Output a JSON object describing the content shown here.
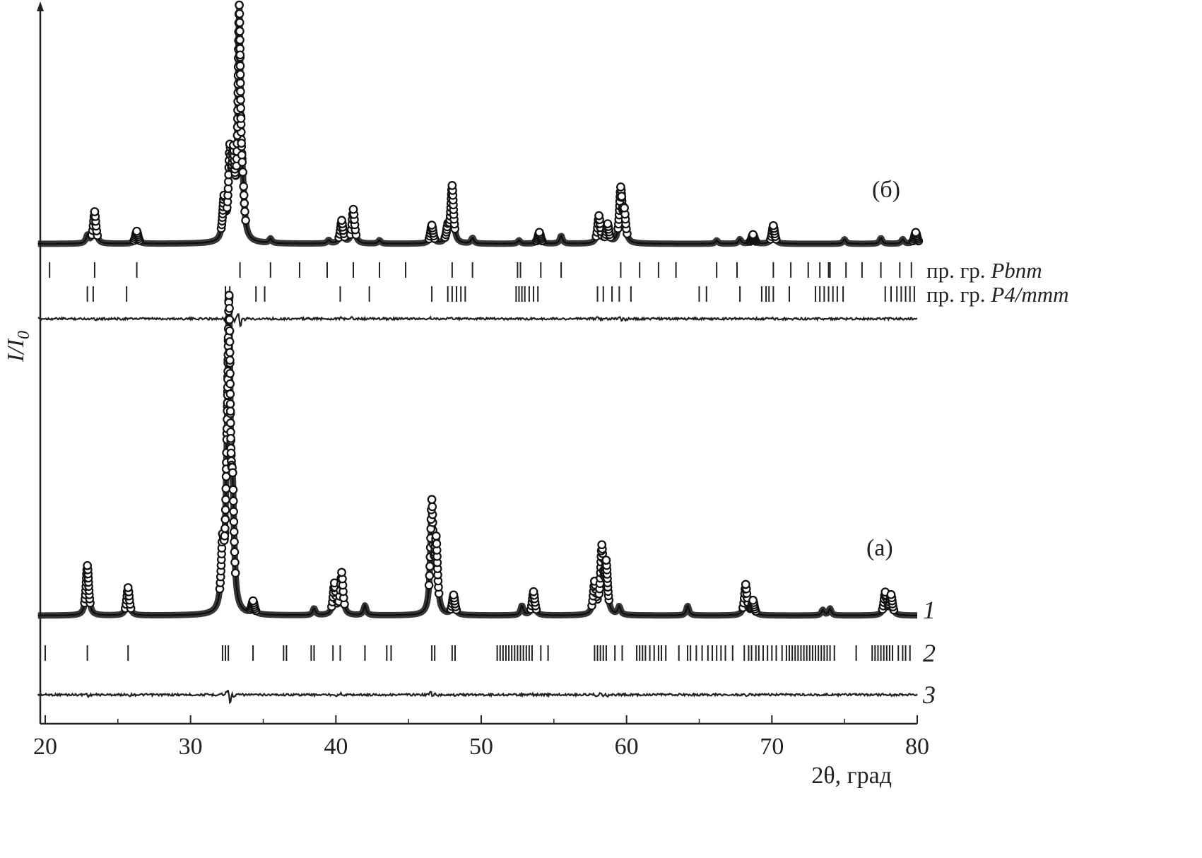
{
  "chart_data": {
    "type": "line",
    "xlabel": "2θ, град",
    "ylabel": "I/I",
    "ylabel_subscript": "0",
    "xlim": [
      19.5,
      80
    ],
    "xticks": [
      20,
      30,
      40,
      50,
      60,
      70,
      80
    ],
    "grid": false,
    "legend": "none",
    "panels": [
      {
        "label": "(а)",
        "baseline": 0,
        "peaks": [
          [
            22.9,
            180
          ],
          [
            25.7,
            100
          ],
          [
            32.2,
            200
          ],
          [
            32.5,
            260
          ],
          [
            32.65,
            1000
          ],
          [
            32.9,
            330
          ],
          [
            34.3,
            45
          ],
          [
            38.5,
            25
          ],
          [
            39.9,
            110
          ],
          [
            40.4,
            150
          ],
          [
            42.0,
            35
          ],
          [
            46.6,
            390
          ],
          [
            46.9,
            240
          ],
          [
            48.1,
            70
          ],
          [
            52.8,
            35
          ],
          [
            53.6,
            85
          ],
          [
            57.8,
            110
          ],
          [
            58.3,
            230
          ],
          [
            58.6,
            170
          ],
          [
            59.5,
            30
          ],
          [
            64.2,
            35
          ],
          [
            68.2,
            110
          ],
          [
            68.7,
            50
          ],
          [
            73.5,
            20
          ],
          [
            74.0,
            25
          ],
          [
            77.8,
            80
          ],
          [
            78.2,
            70
          ]
        ],
        "curve_labels": [
          "1",
          "2",
          "3"
        ],
        "reflections": [
          {
            "name": "",
            "positions": [
              20.0,
              22.9,
              25.7,
              32.2,
              32.4,
              32.6,
              34.3,
              36.4,
              36.6,
              38.3,
              38.5,
              39.8,
              40.3,
              42.0,
              43.5,
              43.8,
              46.6,
              46.8,
              48.0,
              48.2,
              51.1,
              51.3,
              51.5,
              51.7,
              51.9,
              52.1,
              52.3,
              52.5,
              52.7,
              52.9,
              53.1,
              53.3,
              53.5,
              54.1,
              54.6,
              57.8,
              58.0,
              58.2,
              58.4,
              58.6,
              59.2,
              59.7,
              60.7,
              60.9,
              61.1,
              61.3,
              61.6,
              61.9,
              62.2,
              62.4,
              62.7,
              63.6,
              64.2,
              64.4,
              64.8,
              65.2,
              65.6,
              65.9,
              66.2,
              66.5,
              66.8,
              67.3,
              68.1,
              68.4,
              68.6,
              68.9,
              69.1,
              69.4,
              69.7,
              70.0,
              70.3,
              70.7,
              71.0,
              71.2,
              71.4,
              71.6,
              71.8,
              72.0,
              72.2,
              72.4,
              72.6,
              72.8,
              73.0,
              73.2,
              73.4,
              73.6,
              73.8,
              74.0,
              74.3,
              75.8,
              76.9,
              77.1,
              77.3,
              77.5,
              77.7,
              77.9,
              78.1,
              78.3,
              78.7,
              79.0,
              79.2,
              79.5
            ]
          }
        ]
      },
      {
        "label": "(б)",
        "baseline": 0,
        "peaks": [
          [
            22.9,
            35
          ],
          [
            23.4,
            140
          ],
          [
            26.3,
            55
          ],
          [
            32.3,
            170
          ],
          [
            32.7,
            350
          ],
          [
            32.95,
            300
          ],
          [
            33.35,
            1000
          ],
          [
            33.6,
            140
          ],
          [
            35.5,
            20
          ],
          [
            39.5,
            15
          ],
          [
            40.4,
            100
          ],
          [
            41.2,
            150
          ],
          [
            43.0,
            15
          ],
          [
            46.6,
            80
          ],
          [
            47.7,
            60
          ],
          [
            48.0,
            250
          ],
          [
            49.4,
            25
          ],
          [
            52.6,
            15
          ],
          [
            54.0,
            50
          ],
          [
            55.5,
            35
          ],
          [
            58.1,
            120
          ],
          [
            58.7,
            80
          ],
          [
            59.6,
            230
          ],
          [
            59.85,
            120
          ],
          [
            66.2,
            15
          ],
          [
            67.8,
            20
          ],
          [
            68.7,
            40
          ],
          [
            70.1,
            80
          ],
          [
            75.0,
            20
          ],
          [
            77.5,
            25
          ],
          [
            79.0,
            20
          ],
          [
            79.9,
            50
          ]
        ],
        "reflections": [
          {
            "name": "Pbnm",
            "name_prefix": "пр. гр. ",
            "positions": [
              20.3,
              23.4,
              26.3,
              33.4,
              35.5,
              37.5,
              39.4,
              41.2,
              43.0,
              44.8,
              48.0,
              49.4,
              52.5,
              52.7,
              54.1,
              55.5,
              59.6,
              60.9,
              62.2,
              63.4,
              66.2,
              67.6,
              70.1,
              71.3,
              72.5,
              73.3,
              73.9,
              74.0,
              75.1,
              76.2,
              77.5,
              78.8,
              79.6
            ]
          },
          {
            "name": "P4/mmm",
            "name_prefix": "пр. гр. ",
            "positions": [
              22.9,
              23.3,
              25.6,
              32.4,
              32.7,
              34.5,
              35.1,
              40.3,
              42.3,
              46.6,
              47.7,
              48.0,
              48.3,
              48.6,
              48.9,
              52.4,
              52.6,
              52.8,
              53.0,
              53.3,
              53.6,
              53.9,
              58.0,
              58.4,
              59.0,
              59.5,
              60.3,
              65.0,
              65.5,
              67.8,
              69.3,
              69.6,
              69.8,
              70.1,
              71.2,
              73.0,
              73.3,
              73.6,
              73.9,
              74.2,
              74.5,
              74.9,
              77.8,
              78.2,
              78.6,
              78.9,
              79.2,
              79.5,
              79.8
            ]
          }
        ]
      }
    ]
  }
}
